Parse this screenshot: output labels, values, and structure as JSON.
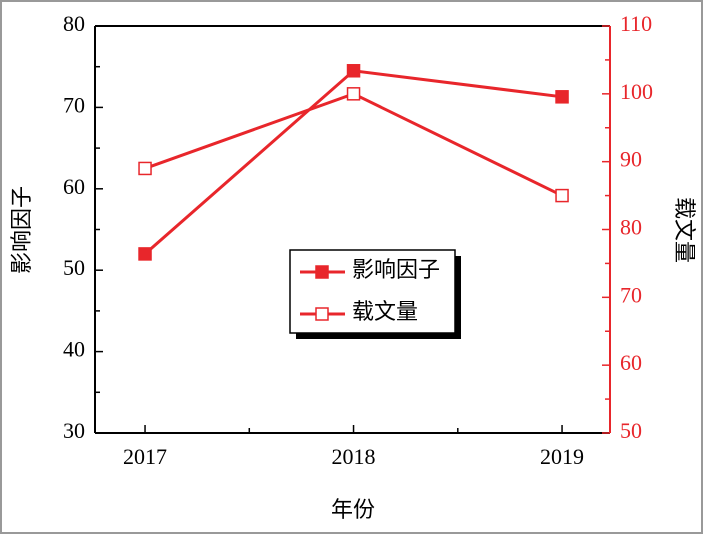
{
  "chart_data": {
    "type": "line",
    "x_label": "年份",
    "y_label": "影响因子",
    "y2_label": "载文量",
    "x": [
      2017,
      2018,
      2019
    ],
    "xlim": [
      2016.76,
      2019.23
    ],
    "xticks": [
      2017,
      2018,
      2019
    ],
    "ylim": [
      30,
      80
    ],
    "yticks": [
      30,
      40,
      50,
      60,
      70,
      80
    ],
    "y2lim": [
      50,
      110
    ],
    "y2ticks": [
      50,
      60,
      70,
      80,
      90,
      100,
      110
    ],
    "y2_color": "#e8262b",
    "series": [
      {
        "name": "影响因子",
        "color": "#e8262b",
        "marker": "filled-square",
        "values": [
          52,
          74.5,
          71.3
        ]
      },
      {
        "name": "载文量",
        "color": "#e8262b",
        "marker": "open-square",
        "axis": "y2",
        "values": [
          89,
          100,
          85
        ]
      }
    ],
    "legend": "center"
  }
}
